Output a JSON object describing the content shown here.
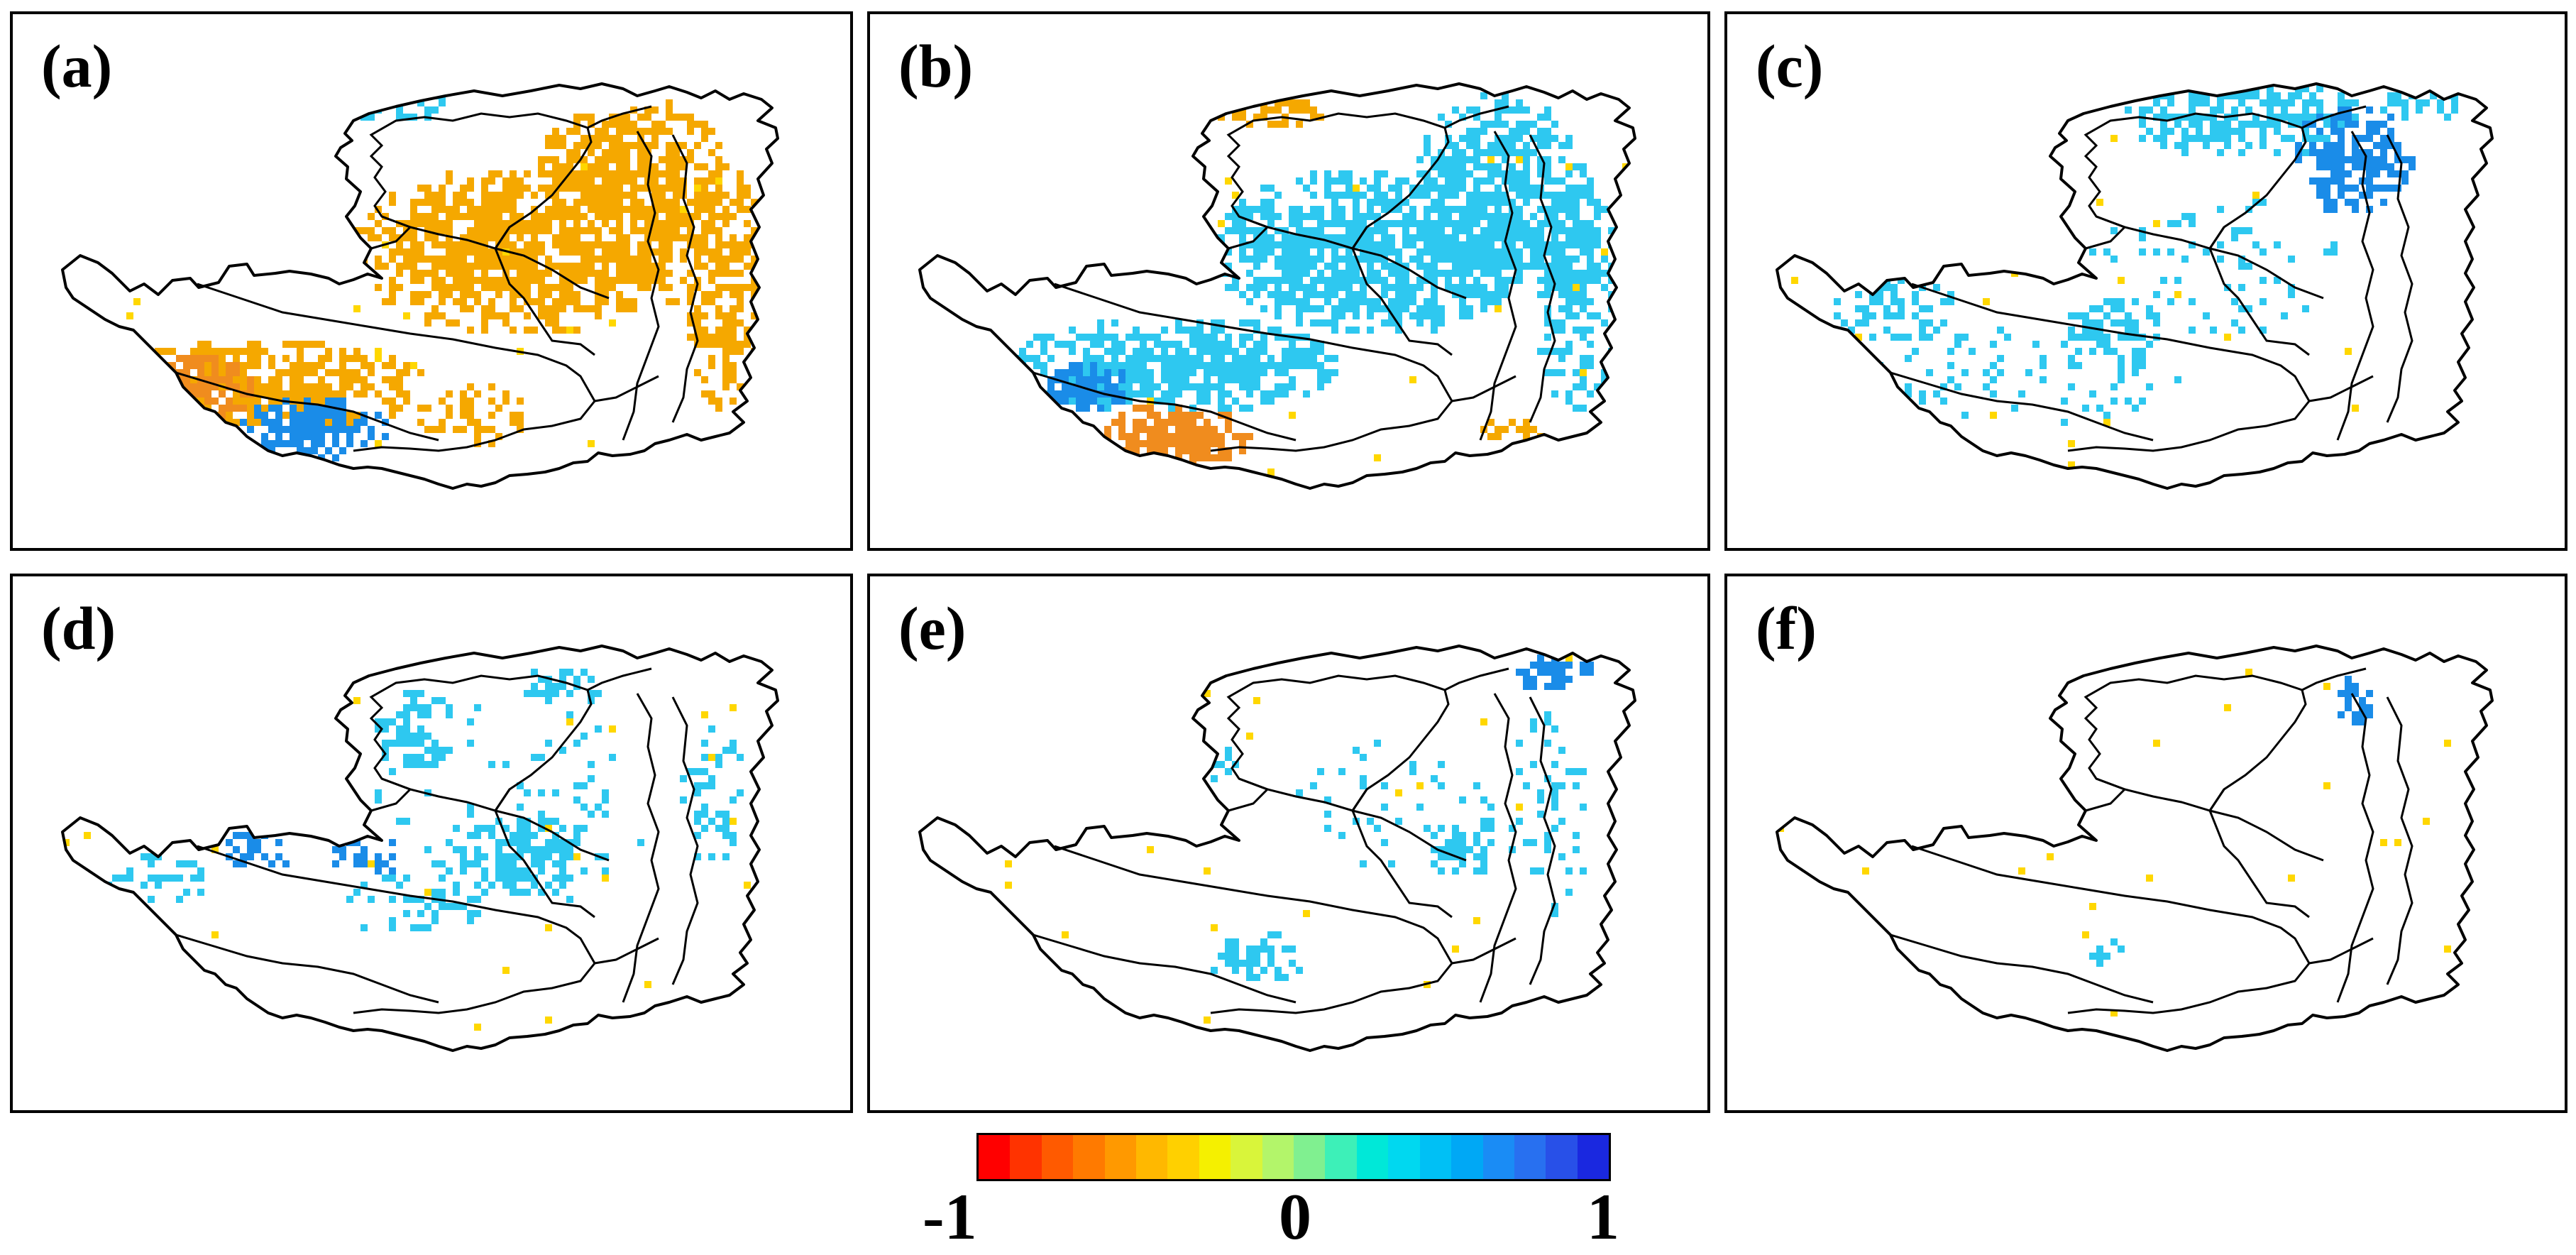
{
  "figure": {
    "panels": [
      {
        "id": "a",
        "label": "(a)",
        "pattern": "a"
      },
      {
        "id": "b",
        "label": "(b)",
        "pattern": "b"
      },
      {
        "id": "c",
        "label": "(c)",
        "pattern": "c"
      },
      {
        "id": "d",
        "label": "(d)",
        "pattern": "d"
      },
      {
        "id": "e",
        "label": "(e)",
        "pattern": "e"
      },
      {
        "id": "f",
        "label": "(f)",
        "pattern": "f"
      }
    ],
    "colorbar": {
      "min_label": "-1",
      "mid_label": "0",
      "max_label": "1",
      "range": [
        -1,
        1
      ],
      "colors": [
        "#ff0000",
        "#ff3300",
        "#ff5a00",
        "#ff7a00",
        "#ff9900",
        "#ffb800",
        "#ffd000",
        "#f5f000",
        "#d9f53a",
        "#b3f56a",
        "#80f090",
        "#3df0b8",
        "#00e8d8",
        "#00d8f0",
        "#00c0f5",
        "#00a8f5",
        "#1a8cf5",
        "#2870f0",
        "#2850e8",
        "#1a28e0"
      ]
    },
    "map_colors": {
      "orange": "#f5a800",
      "deep_orange": "#f08c1e",
      "yellow": "#ffd700",
      "light_blue": "#2ec8f0",
      "blue": "#1a8ce8",
      "deep_blue": "#1e64e6",
      "boundary": "#000000"
    }
  }
}
